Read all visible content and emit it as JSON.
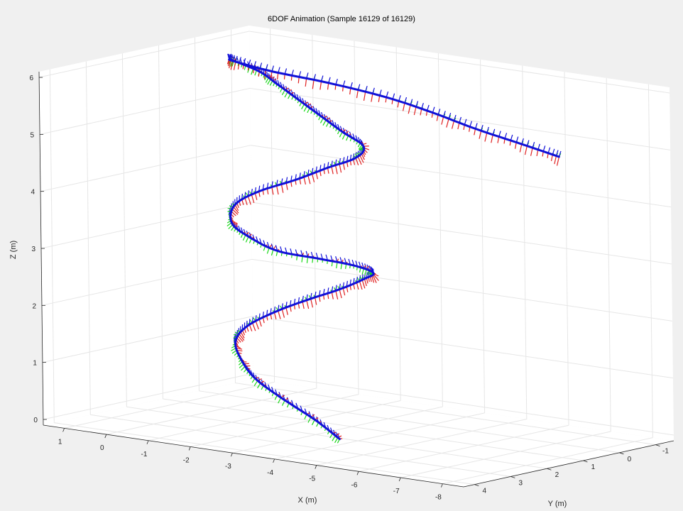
{
  "figure": {
    "title": "6DOF Animation (Sample 16129 of 16129)"
  },
  "chart_data": {
    "type": "line",
    "projection": "3d",
    "title": "6DOF Animation (Sample 16129 of 16129)",
    "xlabel": "X (m)",
    "ylabel": "Y (m)",
    "zlabel": "Z (m)",
    "xlim": [
      -8.5,
      1.5
    ],
    "ylim": [
      -1.5,
      4.3
    ],
    "zlim": [
      -0.1,
      6.1
    ],
    "xticks": [
      "1",
      "0",
      "-1",
      "-2",
      "-3",
      "-4",
      "-5",
      "-6",
      "-7",
      "-8"
    ],
    "yticks": [
      "-1",
      "0",
      "1",
      "2",
      "3",
      "4"
    ],
    "zticks": [
      "0",
      "1",
      "2",
      "3",
      "4",
      "5",
      "6"
    ],
    "grid": true,
    "series": [
      {
        "color": "#1010d8",
        "x": [
          -4.0,
          -3.5,
          -2.7,
          -2.0,
          -1.5,
          -1.2,
          -1.3,
          -1.7,
          -2.3,
          -3.0,
          -3.6,
          -3.9,
          -3.7,
          -3.1,
          -2.4,
          -1.8,
          -1.4,
          -1.4,
          -1.8,
          -2.5,
          -3.1,
          -3.6,
          -3.7,
          -3.2,
          -2.6,
          -2.0,
          -1.4,
          -0.9,
          -0.2,
          0.0,
          -0.5,
          -1.5,
          -2.7,
          -3.8,
          -4.9,
          -6.0,
          -6.8
        ],
        "y": [
          2.5,
          2.6,
          2.6,
          2.5,
          2.3,
          2.1,
          1.9,
          1.6,
          1.4,
          1.3,
          1.3,
          1.4,
          1.7,
          2.0,
          2.3,
          2.4,
          2.4,
          2.3,
          2.1,
          1.9,
          1.7,
          1.5,
          1.4,
          1.4,
          1.3,
          1.2,
          1.1,
          1.0,
          0.9,
          0.7,
          0.2,
          -0.2,
          -0.4,
          -0.4,
          -0.3,
          -0.3,
          -0.4
        ],
        "z": [
          0.0,
          0.3,
          0.6,
          0.85,
          1.1,
          1.35,
          1.6,
          1.85,
          2.1,
          2.35,
          2.6,
          2.75,
          2.9,
          3.0,
          3.1,
          3.3,
          3.5,
          3.8,
          4.05,
          4.3,
          4.55,
          4.75,
          4.95,
          5.15,
          5.35,
          5.55,
          5.75,
          5.9,
          6.0,
          5.95,
          5.75,
          5.6,
          5.45,
          5.3,
          5.15,
          5.0,
          4.85
        ]
      }
    ],
    "frame_axes_colors": [
      "#e02020",
      "#18d818",
      "#1010d8"
    ]
  }
}
